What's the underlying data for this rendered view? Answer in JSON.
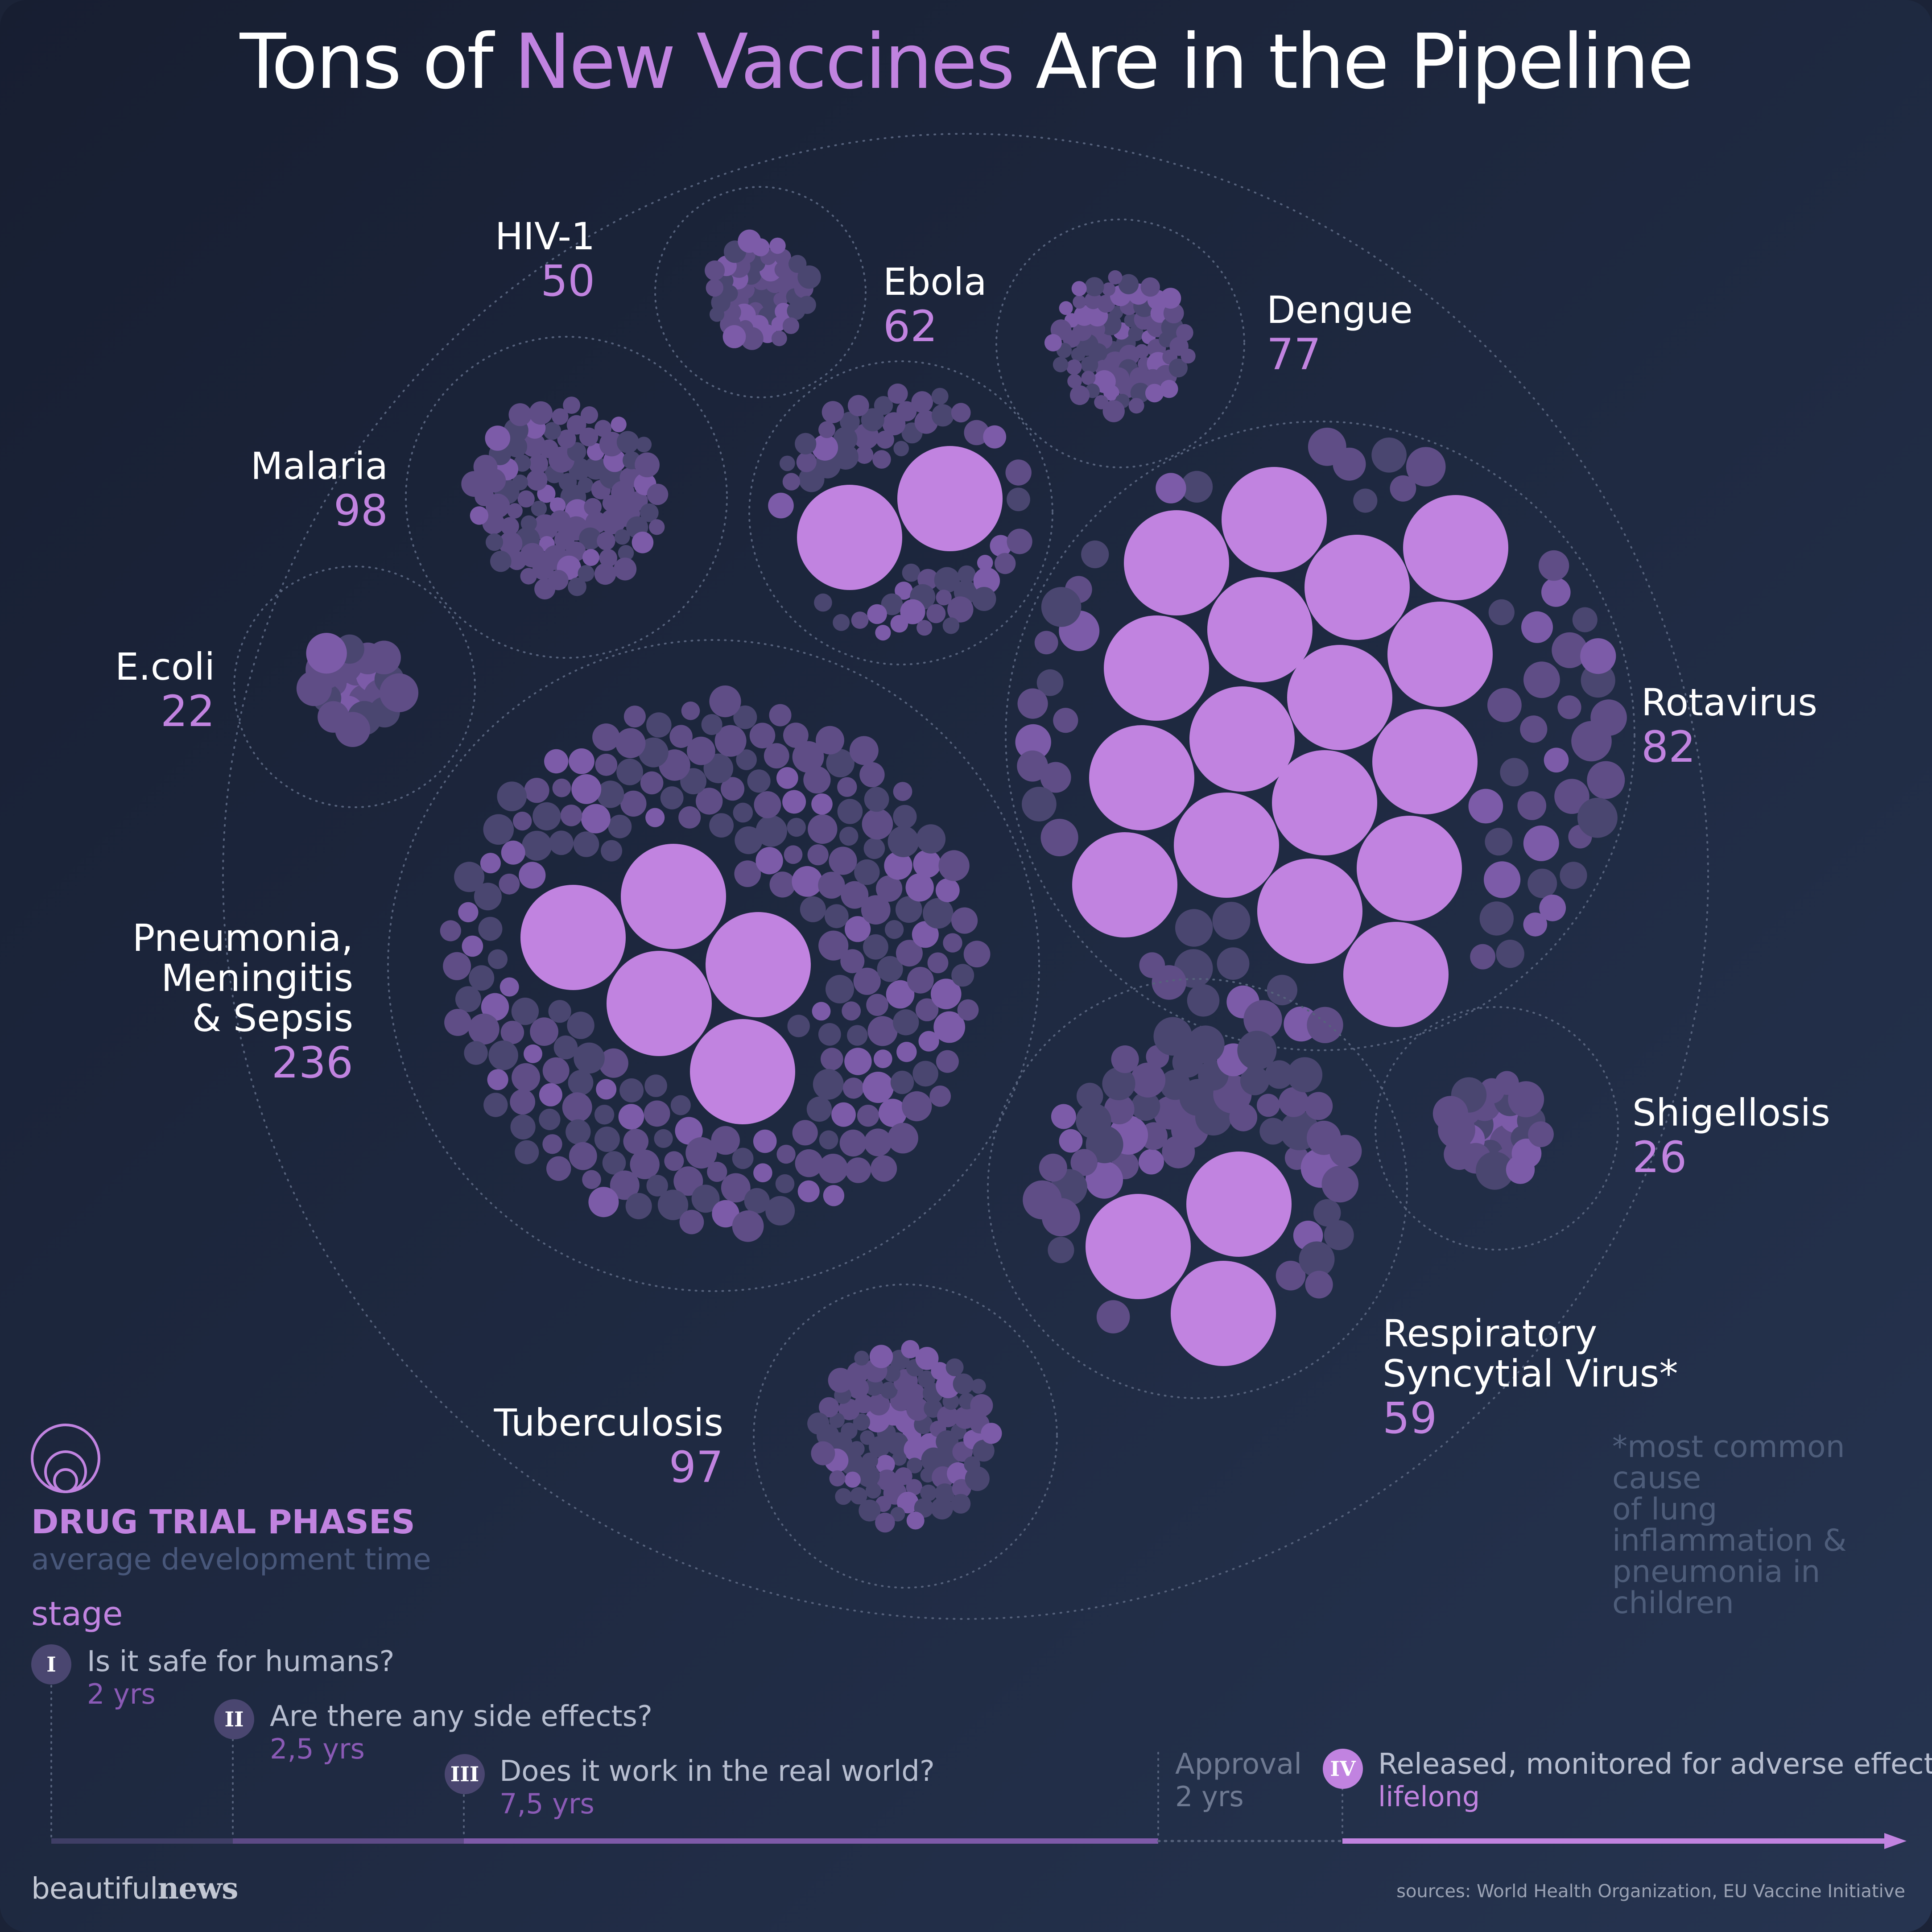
{
  "title": {
    "before": "Tons of ",
    "highlight": "New Vaccines",
    "after": " Are in the Pipeline"
  },
  "colors": {
    "background": "#1c2439",
    "accent": "#c183e0",
    "dot_dim": "#4a4670",
    "dot_mid": "#5f4d86",
    "dot_bright": "#7c5ba8",
    "big_dot": "#c183e0"
  },
  "chart_data": {
    "type": "packed-circles",
    "title": "Tons of New Vaccines Are in the Pipeline",
    "unit": "vaccines in development",
    "diseases": [
      {
        "name": "HIV-1",
        "value": 50,
        "advanced": 0
      },
      {
        "name": "Ebola",
        "value": 62,
        "advanced": 2
      },
      {
        "name": "Dengue",
        "value": 77,
        "advanced": 0
      },
      {
        "name": "Malaria",
        "value": 98,
        "advanced": 0
      },
      {
        "name": "E.coli",
        "value": 22,
        "advanced": 0
      },
      {
        "name": "Rotavirus",
        "value": 82,
        "advanced": 17
      },
      {
        "name": "Pneumonia, Meningitis & Sepsis",
        "value": 236,
        "advanced": 5
      },
      {
        "name": "Shigellosis",
        "value": 26,
        "advanced": 0
      },
      {
        "name": "Respiratory Syncytial Virus*",
        "value": 59,
        "advanced": 3
      },
      {
        "name": "Tuberculosis",
        "value": 97,
        "advanced": 0
      }
    ]
  },
  "labels": {
    "hiv": {
      "name": "HIV-1",
      "value": "50"
    },
    "ebola": {
      "name": "Ebola",
      "value": "62"
    },
    "dengue": {
      "name": "Dengue",
      "value": "77"
    },
    "malaria": {
      "name": "Malaria",
      "value": "98"
    },
    "ecoli": {
      "name": "E.coli",
      "value": "22"
    },
    "rotavirus": {
      "name": "Rotavirus",
      "value": "82"
    },
    "pneumonia": {
      "line1": "Pneumonia,",
      "line2": "Meningitis",
      "line3": "& Sepsis",
      "value": "236"
    },
    "shigellosis": {
      "name": "Shigellosis",
      "value": "26"
    },
    "rsv": {
      "line1": "Respiratory",
      "line2": "Syncytial Virus*",
      "value": "59"
    },
    "tuberculosis": {
      "name": "Tuberculosis",
      "value": "97"
    }
  },
  "footnote": {
    "line1": "*most common cause",
    "line2": "of lung inflammation &",
    "line3": "pneumonia in children"
  },
  "legend": {
    "title": "DRUG TRIAL PHASES",
    "subtitle": "average development time",
    "stage_label": "stage",
    "phases": [
      {
        "numeral": "I",
        "question": "Is it safe for humans?",
        "time": "2 yrs"
      },
      {
        "numeral": "II",
        "question": "Are there any side effects?",
        "time": "2,5 yrs"
      },
      {
        "numeral": "III",
        "question": "Does it work in the real world?",
        "time": "7,5 yrs"
      },
      {
        "numeral": "",
        "question": "Approval",
        "time": "2 yrs"
      },
      {
        "numeral": "IV",
        "question": "Released, monitored for adverse effects",
        "time": "lifelong"
      }
    ]
  },
  "brand": {
    "light": "beautiful",
    "bold": "news"
  },
  "sources": "sources: World Health Organization, EU Vaccine Initiative"
}
